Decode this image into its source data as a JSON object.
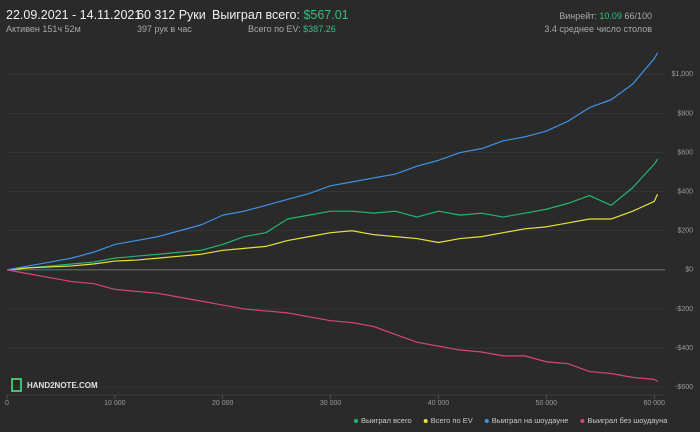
{
  "header": {
    "date_range": "22.09.2021 - 14.11.2021",
    "active": "Активен 151ч 52м",
    "hands": "60 312 Руки",
    "hands_per_hour": "397 рук в час",
    "won_total_label": "Выиграл всего:",
    "won_total": "$567.01",
    "ev_label": "Всего по EV:",
    "ev_value": "$387.26",
    "winrate_label": "Винрейт:",
    "winrate_value": "10.09",
    "winrate_sample": "66/100",
    "avg_tables": "3.4 среднее число столов"
  },
  "logo": "HAND2NOTE.COM",
  "chart_data": {
    "type": "line",
    "x": [
      0,
      2000,
      4000,
      6000,
      8000,
      10000,
      12000,
      14000,
      16000,
      18000,
      20000,
      22000,
      24000,
      26000,
      28000,
      30000,
      32000,
      34000,
      36000,
      38000,
      40000,
      42000,
      44000,
      46000,
      48000,
      50000,
      52000,
      54000,
      56000,
      58000,
      60000,
      60312
    ],
    "series": [
      {
        "name": "Выиграл всего",
        "color": "#22b573",
        "values": [
          0,
          10,
          20,
          30,
          40,
          60,
          70,
          80,
          90,
          100,
          130,
          170,
          190,
          260,
          280,
          300,
          300,
          290,
          300,
          270,
          300,
          280,
          290,
          270,
          290,
          310,
          340,
          380,
          330,
          420,
          540,
          567
        ]
      },
      {
        "name": "Всего по EV",
        "color": "#e8e23a",
        "values": [
          0,
          10,
          15,
          20,
          30,
          45,
          50,
          60,
          70,
          80,
          100,
          110,
          120,
          150,
          170,
          190,
          200,
          180,
          170,
          160,
          140,
          160,
          170,
          190,
          210,
          220,
          240,
          260,
          260,
          300,
          350,
          387
        ]
      },
      {
        "name": "Выиграл на шоудауне",
        "color": "#3f92e6",
        "values": [
          0,
          20,
          40,
          60,
          90,
          130,
          150,
          170,
          200,
          230,
          280,
          300,
          330,
          360,
          390,
          430,
          450,
          470,
          490,
          530,
          560,
          600,
          620,
          660,
          680,
          710,
          760,
          830,
          870,
          950,
          1080,
          1110
        ]
      },
      {
        "name": "Выиграл без шоудауна",
        "color": "#d8456d",
        "values": [
          0,
          -20,
          -40,
          -60,
          -70,
          -100,
          -110,
          -120,
          -140,
          -160,
          -180,
          -200,
          -210,
          -220,
          -240,
          -260,
          -270,
          -290,
          -330,
          -370,
          -390,
          -410,
          -420,
          -440,
          -440,
          -470,
          -480,
          -520,
          -530,
          -550,
          -560,
          -570
        ]
      }
    ],
    "xlim": [
      0,
      61000
    ],
    "xticks": [
      0,
      {
        "value": 10000,
        "label": "10 000"
      },
      {
        "value": 20000,
        "label": "20 000"
      },
      {
        "value": 30000,
        "label": "30 000"
      },
      {
        "value": 40000,
        "label": "40 000"
      },
      {
        "value": 50000,
        "label": "50 000"
      },
      {
        "value": 60000,
        "label": "60 000"
      }
    ],
    "ylim": [
      -640,
      1150
    ],
    "yticks": [
      {
        "value": -600,
        "label": "-$600"
      },
      {
        "value": -400,
        "label": "-$400"
      },
      {
        "value": -200,
        "label": "-$200"
      },
      {
        "value": 0,
        "label": "$0"
      },
      {
        "value": 200,
        "label": "$200"
      },
      {
        "value": 400,
        "label": "$400"
      },
      {
        "value": 600,
        "label": "$600"
      },
      {
        "value": 800,
        "label": "$800"
      },
      {
        "value": 1000,
        "label": "$1,000"
      }
    ],
    "grid": true
  }
}
